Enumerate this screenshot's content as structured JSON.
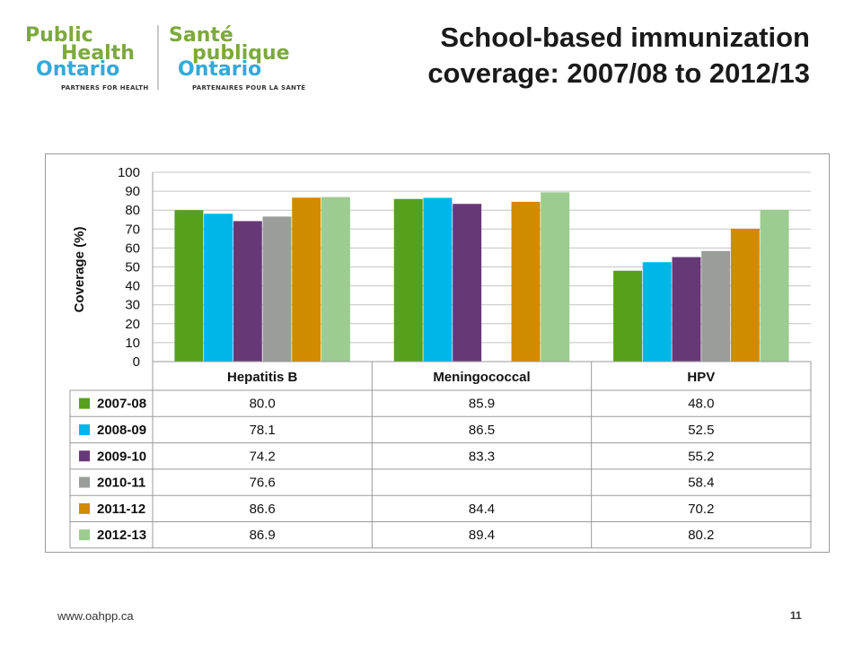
{
  "logo": {
    "en_line1": "Public",
    "en_line2": "Health",
    "en_line3": "Ontario",
    "en_tag": "PARTNERS FOR HEALTH",
    "fr_line1": "Santé",
    "fr_line2": "publique",
    "fr_line3": "Ontario",
    "fr_tag": "PARTENAIRES POUR LA SANTÉ"
  },
  "title": {
    "line1": "School-based immunization",
    "line2": "coverage: 2007/08 to 2012/13"
  },
  "footer": {
    "url": "www.oahpp.ca",
    "page": "11"
  },
  "chart_data": {
    "type": "bar",
    "categories": [
      "Hepatitis B",
      "Meningococcal",
      "HPV"
    ],
    "ylabel": "Coverage (%)",
    "ylim": [
      0,
      100
    ],
    "yticks": [
      0,
      10,
      20,
      30,
      40,
      50,
      60,
      70,
      80,
      90,
      100
    ],
    "grid": true,
    "legend": "data-table",
    "series": [
      {
        "name": "2007-08",
        "color": "#56a01e",
        "values": [
          80.0,
          85.9,
          48.0
        ],
        "labels": [
          "80.0",
          "85.9",
          "48.0"
        ]
      },
      {
        "name": "2008-09",
        "color": "#00b6e8",
        "values": [
          78.1,
          86.5,
          52.5
        ],
        "labels": [
          "78.1",
          "86.5",
          "52.5"
        ]
      },
      {
        "name": "2009-10",
        "color": "#673878",
        "values": [
          74.2,
          83.3,
          55.2
        ],
        "labels": [
          "74.2",
          "83.3",
          "55.2"
        ]
      },
      {
        "name": "2010-11",
        "color": "#999e99",
        "values": [
          76.6,
          null,
          58.4
        ],
        "labels": [
          "76.6",
          "",
          "58.4"
        ]
      },
      {
        "name": "2011-12",
        "color": "#d18b00",
        "values": [
          86.6,
          84.4,
          70.2
        ],
        "labels": [
          "86.6",
          "84.4",
          "70.2"
        ]
      },
      {
        "name": "2012-13",
        "color": "#9ccc8f",
        "values": [
          86.9,
          89.4,
          80.2
        ],
        "labels": [
          "86.9",
          "89.4",
          "80.2"
        ]
      }
    ]
  }
}
